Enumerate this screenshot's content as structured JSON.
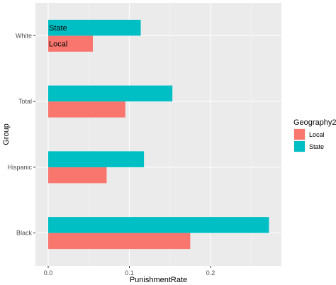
{
  "chart_data": {
    "type": "bar",
    "orientation": "horizontal",
    "categories": [
      "Black",
      "Hispanic",
      "Total",
      "White"
    ],
    "series": [
      {
        "name": "Local",
        "values": [
          0.175,
          0.072,
          0.095,
          0.055
        ]
      },
      {
        "name": "State",
        "values": [
          0.272,
          0.118,
          0.153,
          0.114
        ]
      }
    ],
    "xlabel": "PunishmentRate",
    "ylabel": "Group",
    "xlim": [
      0,
      0.28
    ],
    "x_ticks": [
      0.0,
      0.1,
      0.2
    ],
    "x_tick_labels": [
      "0.0",
      "0.1",
      "0.2"
    ],
    "grid": true,
    "legend": {
      "title": "Geography2",
      "position": "right",
      "entries": [
        "Local",
        "State"
      ]
    },
    "annotations": [
      {
        "category": "White",
        "series": "State",
        "text": "State"
      },
      {
        "category": "White",
        "series": "Local",
        "text": "Local"
      }
    ],
    "colors": {
      "Local": "#F8766D",
      "State": "#00BFC4"
    },
    "panel_background": "#EBEBEB",
    "grid_major_color": "#FFFFFF"
  }
}
